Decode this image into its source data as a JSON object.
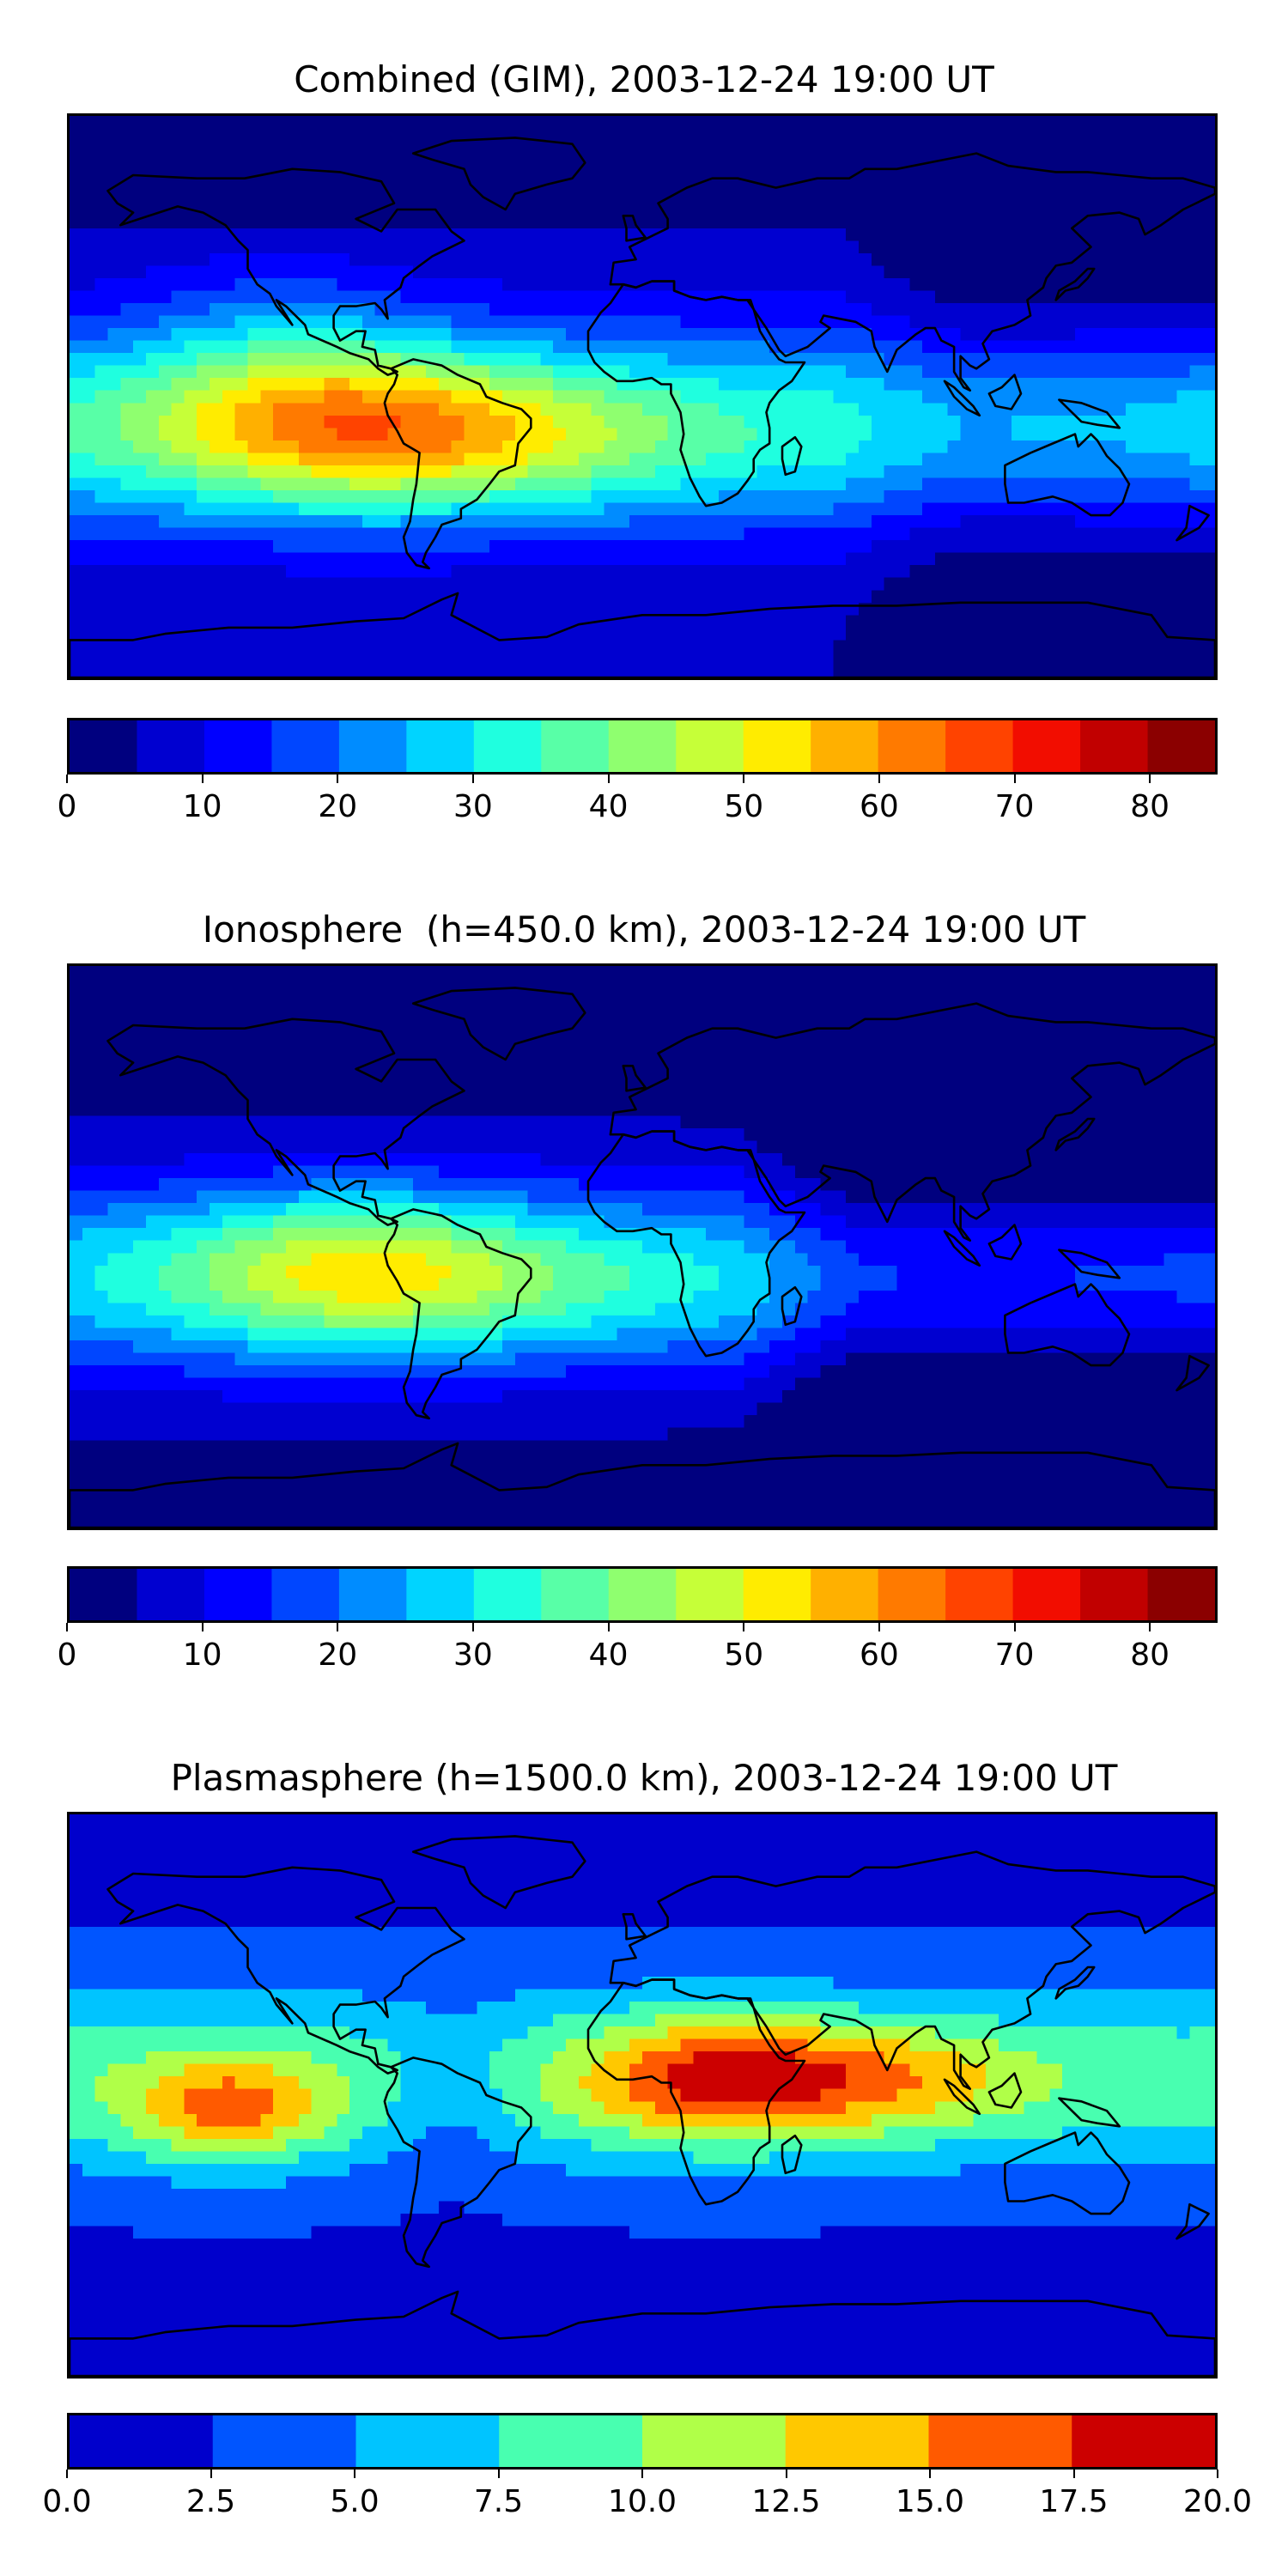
{
  "chart_data": [
    {
      "type": "heatmap",
      "title": "Combined (GIM), 2003-12-24 19:00 UT",
      "colorbar": {
        "vmin": 0,
        "vmax": 85,
        "step": 5,
        "ticks": [
          0,
          10,
          20,
          30,
          40,
          50,
          60,
          70,
          80
        ],
        "tick_labels": [
          "0",
          "10",
          "20",
          "30",
          "40",
          "50",
          "60",
          "70",
          "80"
        ]
      },
      "peak_value": 60,
      "peak_region": "eastern South Pacific / west of South America"
    },
    {
      "type": "heatmap",
      "title": "Ionosphere  (h=450.0 km), 2003-12-24 19:00 UT",
      "colorbar": {
        "vmin": 0,
        "vmax": 85,
        "step": 5,
        "ticks": [
          0,
          10,
          20,
          30,
          40,
          50,
          60,
          70,
          80
        ],
        "tick_labels": [
          "0",
          "10",
          "20",
          "30",
          "40",
          "50",
          "60",
          "70",
          "80"
        ]
      },
      "peak_value": 52,
      "peak_region": "eastern South Pacific / South America"
    },
    {
      "type": "heatmap",
      "title": "Plasmasphere (h=1500.0 km), 2003-12-24 19:00 UT",
      "colorbar": {
        "vmin": 0,
        "vmax": 20,
        "step": 2.5,
        "ticks": [
          0,
          2.5,
          5,
          7.5,
          10,
          12.5,
          15,
          17.5,
          20
        ],
        "tick_labels": [
          "0.0",
          "2.5",
          "5.0",
          "7.5",
          "10.0",
          "12.5",
          "15.0",
          "17.5",
          "20.0"
        ]
      },
      "peak_value": 18,
      "peak_region": "central Africa"
    }
  ],
  "colormaps": {
    "jet17": [
      "#00007f",
      "#0000d0",
      "#0000ff",
      "#0046ff",
      "#008cff",
      "#00d4ff",
      "#1fffdf",
      "#58ffa7",
      "#8fff6f",
      "#c6ff38",
      "#ffec00",
      "#ffb000",
      "#ff7a00",
      "#ff4300",
      "#f20d00",
      "#c10000",
      "#8b0000"
    ],
    "jet8": [
      "#0000cc",
      "#0055ff",
      "#00c4ff",
      "#48ffb0",
      "#b0ff48",
      "#ffc800",
      "#ff5a00",
      "#cc0000"
    ]
  }
}
